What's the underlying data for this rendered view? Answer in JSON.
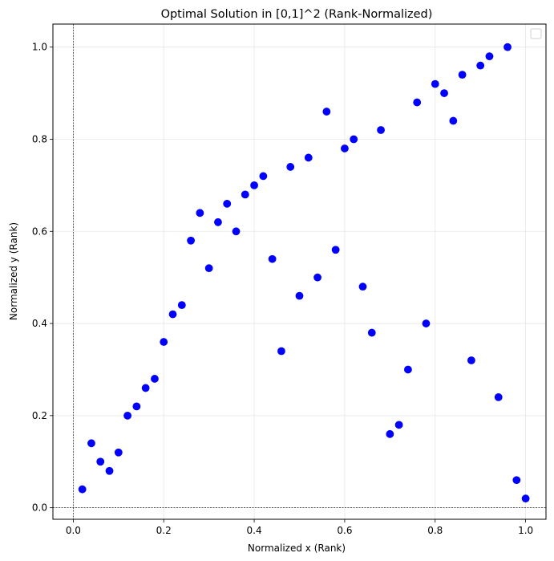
{
  "chart_data": {
    "type": "scatter",
    "title": "Optimal Solution in [0,1]^2 (Rank-Normalized)",
    "xlabel": "Normalized x (Rank)",
    "ylabel": "Normalized y (Rank)",
    "xlim": [
      -0.045,
      1.045
    ],
    "ylim": [
      -0.025,
      1.05
    ],
    "xticks": [
      "0.0",
      "0.2",
      "0.4",
      "0.6",
      "0.8",
      "1.0"
    ],
    "yticks": [
      "0.0",
      "0.2",
      "0.4",
      "0.6",
      "0.8",
      "1.0"
    ],
    "grid": true,
    "legend": "top-right",
    "reference_lines": {
      "x": 0,
      "y": 0
    },
    "marker_color": "#0000ff",
    "points": [
      {
        "x": 0.02,
        "y": 0.04
      },
      {
        "x": 0.04,
        "y": 0.14
      },
      {
        "x": 0.06,
        "y": 0.1
      },
      {
        "x": 0.08,
        "y": 0.08
      },
      {
        "x": 0.1,
        "y": 0.12
      },
      {
        "x": 0.12,
        "y": 0.2
      },
      {
        "x": 0.14,
        "y": 0.22
      },
      {
        "x": 0.16,
        "y": 0.26
      },
      {
        "x": 0.18,
        "y": 0.28
      },
      {
        "x": 0.2,
        "y": 0.36
      },
      {
        "x": 0.22,
        "y": 0.42
      },
      {
        "x": 0.24,
        "y": 0.44
      },
      {
        "x": 0.26,
        "y": 0.58
      },
      {
        "x": 0.28,
        "y": 0.64
      },
      {
        "x": 0.3,
        "y": 0.52
      },
      {
        "x": 0.32,
        "y": 0.62
      },
      {
        "x": 0.34,
        "y": 0.66
      },
      {
        "x": 0.36,
        "y": 0.6
      },
      {
        "x": 0.38,
        "y": 0.68
      },
      {
        "x": 0.4,
        "y": 0.7
      },
      {
        "x": 0.42,
        "y": 0.72
      },
      {
        "x": 0.44,
        "y": 0.54
      },
      {
        "x": 0.46,
        "y": 0.34
      },
      {
        "x": 0.48,
        "y": 0.74
      },
      {
        "x": 0.5,
        "y": 0.46
      },
      {
        "x": 0.52,
        "y": 0.76
      },
      {
        "x": 0.54,
        "y": 0.5
      },
      {
        "x": 0.56,
        "y": 0.86
      },
      {
        "x": 0.58,
        "y": 0.56
      },
      {
        "x": 0.6,
        "y": 0.78
      },
      {
        "x": 0.62,
        "y": 0.8
      },
      {
        "x": 0.64,
        "y": 0.48
      },
      {
        "x": 0.66,
        "y": 0.38
      },
      {
        "x": 0.68,
        "y": 0.82
      },
      {
        "x": 0.7,
        "y": 0.16
      },
      {
        "x": 0.72,
        "y": 0.18
      },
      {
        "x": 0.74,
        "y": 0.3
      },
      {
        "x": 0.76,
        "y": 0.88
      },
      {
        "x": 0.78,
        "y": 0.4
      },
      {
        "x": 0.8,
        "y": 0.92
      },
      {
        "x": 0.82,
        "y": 0.9
      },
      {
        "x": 0.84,
        "y": 0.84
      },
      {
        "x": 0.86,
        "y": 0.94
      },
      {
        "x": 0.88,
        "y": 0.32
      },
      {
        "x": 0.9,
        "y": 0.96
      },
      {
        "x": 0.92,
        "y": 0.98
      },
      {
        "x": 0.94,
        "y": 0.24
      },
      {
        "x": 0.96,
        "y": 1.0
      },
      {
        "x": 0.98,
        "y": 0.06
      },
      {
        "x": 1.0,
        "y": 0.02
      }
    ]
  }
}
